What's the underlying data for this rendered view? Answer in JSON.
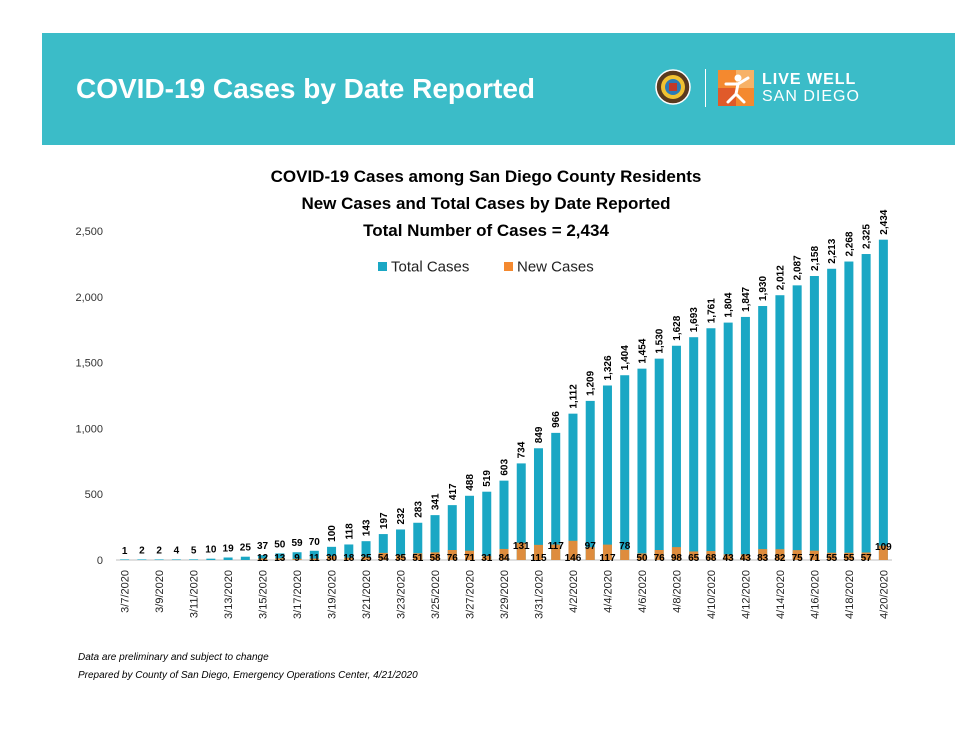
{
  "banner": {
    "title": "COVID-19 Cases by Date Reported",
    "logo_line1": "LIVE WELL",
    "logo_line2": "SAN DIEGO",
    "seal_icon": "county-seal-icon",
    "logo_icon": "live-well-figure-icon",
    "color": "#3bbcc8"
  },
  "footnotes": {
    "line1": "Data are preliminary and subject to change",
    "line2": "Prepared by County of San Diego, Emergency Operations Center, 4/21/2020"
  },
  "chart_data": {
    "type": "bar",
    "title": [
      "COVID-19 Cases among San Diego County Residents",
      "New Cases and Total Cases by Date Reported",
      "Total Number of Cases = 2,434"
    ],
    "xlabel": "",
    "ylabel": "",
    "ylim": [
      0,
      2500
    ],
    "yticks": [
      0,
      500,
      1000,
      1500,
      2000,
      2500
    ],
    "ytick_labels": [
      "0",
      "500",
      "1,000",
      "1,500",
      "2,000",
      "2,500"
    ],
    "grid": false,
    "legend_position": "top-center",
    "categories": [
      "3/7/2020",
      "3/8/2020",
      "3/9/2020",
      "3/10/2020",
      "3/11/2020",
      "3/12/2020",
      "3/13/2020",
      "3/14/2020",
      "3/15/2020",
      "3/16/2020",
      "3/17/2020",
      "3/18/2020",
      "3/19/2020",
      "3/20/2020",
      "3/21/2020",
      "3/22/2020",
      "3/23/2020",
      "3/24/2020",
      "3/25/2020",
      "3/26/2020",
      "3/27/2020",
      "3/28/2020",
      "3/29/2020",
      "3/30/2020",
      "3/31/2020",
      "4/1/2020",
      "4/2/2020",
      "4/3/2020",
      "4/4/2020",
      "4/5/2020",
      "4/6/2020",
      "4/7/2020",
      "4/8/2020",
      "4/9/2020",
      "4/10/2020",
      "4/11/2020",
      "4/12/2020",
      "4/13/2020",
      "4/14/2020",
      "4/15/2020",
      "4/16/2020",
      "4/17/2020",
      "4/18/2020",
      "4/19/2020",
      "4/20/2020"
    ],
    "tick_labels": [
      "3/7/2020",
      "3/9/2020",
      "3/11/2020",
      "3/13/2020",
      "3/15/2020",
      "3/17/2020",
      "3/19/2020",
      "3/21/2020",
      "3/23/2020",
      "3/25/2020",
      "3/27/2020",
      "3/29/2020",
      "3/31/2020",
      "4/2/2020",
      "4/4/2020",
      "4/6/2020",
      "4/8/2020",
      "4/10/2020",
      "4/12/2020",
      "4/14/2020",
      "4/16/2020",
      "4/18/2020",
      "4/20/2020"
    ],
    "series": [
      {
        "name": "Total Cases",
        "color": "#1aa7c4",
        "values": [
          1,
          2,
          2,
          4,
          5,
          10,
          19,
          25,
          37,
          50,
          59,
          70,
          100,
          118,
          143,
          197,
          232,
          283,
          341,
          417,
          488,
          519,
          603,
          734,
          849,
          966,
          1112,
          1209,
          1326,
          1404,
          1454,
          1530,
          1628,
          1693,
          1761,
          1804,
          1847,
          1930,
          2012,
          2087,
          2158,
          2213,
          2268,
          2325,
          2434
        ],
        "labels": [
          "1",
          "2",
          "2",
          "4",
          "5",
          "10",
          "19",
          "25",
          "37",
          "50",
          "59",
          "70",
          "100",
          "118",
          "143",
          "197",
          "232",
          "283",
          "341",
          "417",
          "488",
          "519",
          "603",
          "734",
          "849",
          "966",
          "1,112",
          "1,209",
          "1,326",
          "1,404",
          "1,454",
          "1,530",
          "1,628",
          "1,693",
          "1,761",
          "1,804",
          "1,847",
          "1,930",
          "2,012",
          "2,087",
          "2,158",
          "2,213",
          "2,268",
          "2,325",
          "2,434"
        ]
      },
      {
        "name": "New Cases",
        "color": "#f4892f",
        "values": [
          null,
          null,
          null,
          null,
          null,
          null,
          null,
          null,
          12,
          13,
          9,
          11,
          30,
          18,
          25,
          54,
          35,
          51,
          58,
          76,
          71,
          31,
          84,
          131,
          115,
          117,
          146,
          97,
          117,
          78,
          50,
          76,
          98,
          65,
          68,
          43,
          43,
          83,
          82,
          75,
          71,
          55,
          55,
          57,
          109
        ],
        "labels": [
          null,
          null,
          null,
          null,
          null,
          null,
          null,
          null,
          "12",
          "13",
          "9",
          "11",
          "30",
          "18",
          "25",
          "54",
          "35",
          "51",
          "58",
          "76",
          "71",
          "31",
          "84",
          "131",
          "115",
          "117",
          "146",
          "97",
          "117",
          "78",
          "50",
          "76",
          "98",
          "65",
          "68",
          "43",
          "43",
          "83",
          "82",
          "75",
          "71",
          "55",
          "55",
          "57",
          "109"
        ]
      }
    ]
  }
}
